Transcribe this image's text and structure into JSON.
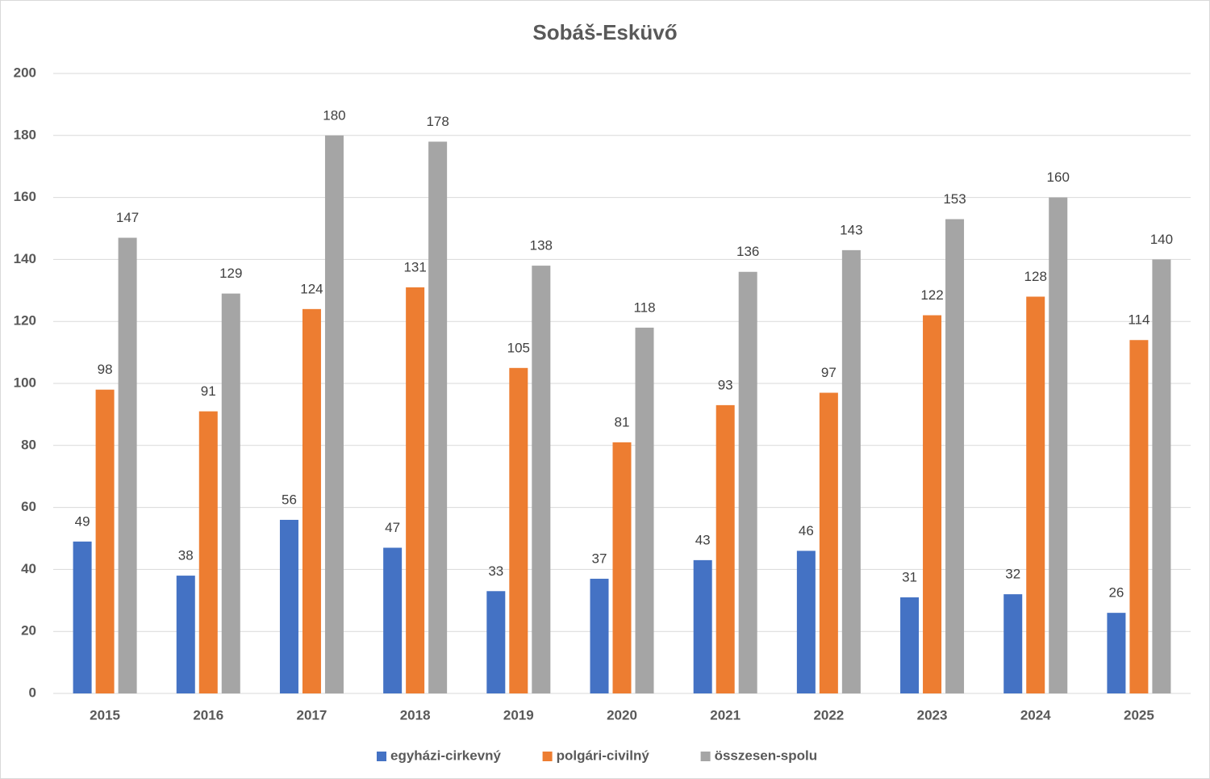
{
  "chart_data": {
    "type": "bar",
    "title": "Sobáš-Esküvő",
    "categories": [
      "2015",
      "2016",
      "2017",
      "2018",
      "2019",
      "2020",
      "2021",
      "2022",
      "2023",
      "2024",
      "2025"
    ],
    "series": [
      {
        "name": "egyházi-cirkevný",
        "color": "#4472c4",
        "values": [
          49,
          38,
          56,
          47,
          33,
          37,
          43,
          46,
          31,
          32,
          26
        ]
      },
      {
        "name": "polgári-civilný",
        "color": "#ed7d31",
        "values": [
          98,
          91,
          124,
          131,
          105,
          81,
          93,
          97,
          122,
          128,
          114
        ]
      },
      {
        "name": "összesen-spolu",
        "color": "#a5a5a5",
        "values": [
          147,
          129,
          180,
          178,
          138,
          118,
          136,
          143,
          153,
          160,
          140
        ]
      }
    ],
    "ylim": [
      0,
      200
    ],
    "yticks": [
      0,
      20,
      40,
      60,
      80,
      100,
      120,
      140,
      160,
      180,
      200
    ],
    "grid": true,
    "legend": "bottom"
  }
}
